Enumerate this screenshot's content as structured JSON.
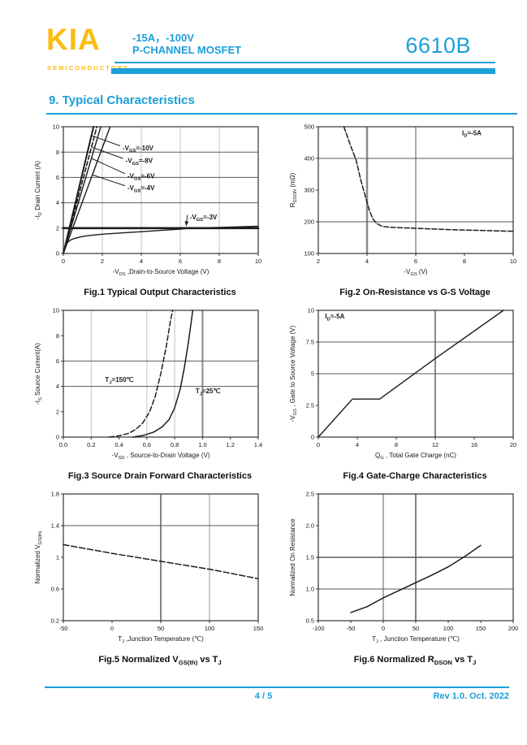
{
  "colors": {
    "accent": "#1b9fd8",
    "logo_yellow": "#fbbc12"
  },
  "header": {
    "logo_text": "KIA",
    "logo_subtext": "SEMICONDUCTORS",
    "rating_line": "-15A，-100V",
    "type_line": "P-CHANNEL MOSFET",
    "part_number": "6610B"
  },
  "section": {
    "title": "9.  Typical Characteristics"
  },
  "footer": {
    "page_indicator": "4 / 5",
    "revision": "Rev 1.0. Oct. 2022"
  },
  "chart_data": [
    {
      "id": "fig1",
      "type": "line",
      "caption": "Fig.1 Typical Output Characteristics",
      "xlabel": "-V_{DS} ,Drain-to-Source Voltage (V)",
      "ylabel": "-I_{D} Drain Current (A)",
      "xlim": [
        0,
        10
      ],
      "ylim": [
        0,
        10
      ],
      "xticks": [
        0,
        2,
        4,
        6,
        8,
        10
      ],
      "xtick_labels": [
        "0",
        "2",
        "4",
        "6",
        "8",
        "10"
      ],
      "yticks": [
        0,
        2,
        4,
        6,
        8,
        10
      ],
      "ytick_labels": [
        "0",
        "2",
        "4",
        "6",
        "8",
        "10"
      ],
      "grid_v": [
        {
          "x": 2,
          "c": "#c3c3c3",
          "w": 1
        },
        {
          "x": 4,
          "c": "#c3c3c3",
          "w": 1
        },
        {
          "x": 6,
          "c": "#c3c3c3",
          "w": 1
        },
        {
          "x": 8,
          "c": "#c3c3c3",
          "w": 1
        }
      ],
      "grid_h": [
        {
          "y": 4,
          "c": "#5a5a5a",
          "w": 1
        },
        {
          "y": 6,
          "c": "#5a5a5a",
          "w": 1
        },
        {
          "y": 8,
          "c": "#5a5a5a",
          "w": 1
        }
      ],
      "series": [
        {
          "name": "-VGS=-10V",
          "dash": "",
          "w": 2,
          "points": [
            [
              0,
              0
            ],
            [
              1.55,
              10
            ]
          ]
        },
        {
          "name": "-VGS=-8V",
          "dash": "5 3",
          "w": 1.6,
          "points": [
            [
              0,
              0
            ],
            [
              1.72,
              10
            ]
          ]
        },
        {
          "name": "-VGS=-6V",
          "dash": "",
          "w": 1.4,
          "points": [
            [
              0,
              0
            ],
            [
              1.92,
              10
            ]
          ]
        },
        {
          "name": "-VGS=-4V",
          "dash": "",
          "w": 1.4,
          "points": [
            [
              0,
              0
            ],
            [
              2.4,
              10
            ]
          ]
        },
        {
          "name": "-VGS=-3V saturation",
          "dash": "",
          "w": 2.6,
          "points": [
            [
              0,
              2
            ],
            [
              10,
              2
            ]
          ]
        },
        {
          "name": "-VGS=-3V",
          "dash": "",
          "w": 1.4,
          "points": [
            [
              0,
              0
            ],
            [
              0.1,
              0.55
            ],
            [
              0.2,
              0.85
            ],
            [
              0.35,
              1.05
            ],
            [
              0.6,
              1.2
            ],
            [
              1,
              1.35
            ],
            [
              1.5,
              1.45
            ],
            [
              2,
              1.52
            ],
            [
              3,
              1.62
            ],
            [
              4,
              1.72
            ],
            [
              5,
              1.82
            ],
            [
              6,
              1.92
            ],
            [
              6.5,
              2.0
            ],
            [
              7,
              2.02
            ],
            [
              8,
              2.06
            ],
            [
              9,
              2.1
            ],
            [
              10,
              2.15
            ]
          ]
        }
      ],
      "annotations": [],
      "callouts": [
        {
          "text": "-V_{GS}=-10V",
          "tx": 3.0,
          "ty": 8.3,
          "ax": 1.45,
          "ay": 9.3,
          "arrow": false
        },
        {
          "text": "-V_{GS}=-8V",
          "tx": 3.15,
          "ty": 7.3,
          "ax": 1.44,
          "ay": 8.4,
          "arrow": false
        },
        {
          "text": "-V_{GS}=-6V",
          "tx": 3.25,
          "ty": 6.1,
          "ax": 1.45,
          "ay": 7.5,
          "arrow": false
        },
        {
          "text": "-V_{GS}=-4V",
          "tx": 3.25,
          "ty": 5.15,
          "ax": 1.5,
          "ay": 6.2,
          "arrow": false
        },
        {
          "text": "-V_{GS}=-3V",
          "tx": 6.45,
          "ty": 2.85,
          "ax": 6.3,
          "ay": 2.15,
          "arrow": true
        }
      ]
    },
    {
      "id": "fig2",
      "type": "line",
      "caption": "Fig.2 On-Resistance vs G-S Voltage",
      "xlabel": "-V_{GS} (V)",
      "ylabel": "R_{DSON} (mΩ)",
      "xlim": [
        2,
        10
      ],
      "ylim": [
        100,
        500
      ],
      "xticks": [
        2,
        4,
        6,
        8,
        10
      ],
      "xtick_labels": [
        "2",
        "4",
        "6",
        "8",
        "10"
      ],
      "yticks": [
        100,
        200,
        300,
        400,
        500
      ],
      "ytick_labels": [
        "100",
        "200",
        "300",
        "400",
        "500"
      ],
      "grid_v": [
        {
          "x": 4,
          "c": "#8a8a8a",
          "w": 2.5
        },
        {
          "x": 6,
          "c": "#5a5a5a",
          "w": 1
        }
      ],
      "grid_h": [
        {
          "y": 200,
          "c": "#5a5a5a",
          "w": 1
        },
        {
          "y": 400,
          "c": "#5a5a5a",
          "w": 1
        }
      ],
      "series": [
        {
          "name": "RDSON vs VGS",
          "dash": "6 2.5",
          "w": 1.5,
          "points": [
            [
              3.05,
              500
            ],
            [
              3.3,
              445
            ],
            [
              3.55,
              395
            ],
            [
              3.75,
              330
            ],
            [
              3.95,
              275
            ],
            [
              4.1,
              235
            ],
            [
              4.25,
              208
            ],
            [
              4.4,
              195
            ],
            [
              4.6,
              186
            ],
            [
              4.9,
              183
            ],
            [
              5.5,
              181
            ],
            [
              6.5,
              178
            ],
            [
              7.5,
              175
            ],
            [
              8.5,
              173
            ],
            [
              10,
              170
            ]
          ]
        }
      ],
      "annotations": [
        {
          "text": "I_{D}=-5A",
          "x": 7.9,
          "y": 473,
          "anchor": "start"
        }
      ],
      "callouts": []
    },
    {
      "id": "fig3",
      "type": "line",
      "caption": "Fig.3 Source Drain Forward Characteristics",
      "xlabel": "-V_{SD} , Source-to-Drain Voltage (V)",
      "ylabel": "-I_{S} Source Current(A)",
      "xlim": [
        0,
        1.4
      ],
      "ylim": [
        0,
        10
      ],
      "xticks": [
        0,
        0.2,
        0.4,
        0.6,
        0.8,
        1.0,
        1.2,
        1.4
      ],
      "xtick_labels": [
        "0.0",
        "0.2",
        "0.4",
        "0.6",
        "0.8",
        "1.0",
        "1.2",
        "1.4"
      ],
      "yticks": [
        0,
        2,
        4,
        6,
        8,
        10
      ],
      "ytick_labels": [
        "0",
        "2",
        "4",
        "6",
        "8",
        "10"
      ],
      "grid_v": [
        {
          "x": 0.2,
          "c": "#c3c3c3",
          "w": 1
        },
        {
          "x": 0.6,
          "c": "#c3c3c3",
          "w": 1
        },
        {
          "x": 0.8,
          "c": "#c3c3c3",
          "w": 1
        },
        {
          "x": 1.0,
          "c": "#8a8a8a",
          "w": 2
        }
      ],
      "grid_h": [
        {
          "y": 4,
          "c": "#5a5a5a",
          "w": 1
        },
        {
          "y": 6,
          "c": "#5a5a5a",
          "w": 1
        }
      ],
      "series": [
        {
          "name": "TJ=150C",
          "dash": "6 3",
          "w": 1.5,
          "points": [
            [
              0.33,
              0
            ],
            [
              0.4,
              0.1
            ],
            [
              0.47,
              0.3
            ],
            [
              0.52,
              0.6
            ],
            [
              0.57,
              1.1
            ],
            [
              0.62,
              2.0
            ],
            [
              0.66,
              3.2
            ],
            [
              0.7,
              5.0
            ],
            [
              0.74,
              7.2
            ],
            [
              0.77,
              9.2
            ],
            [
              0.785,
              10
            ]
          ]
        },
        {
          "name": "TJ=25C",
          "dash": "",
          "w": 1.5,
          "points": [
            [
              0.5,
              0
            ],
            [
              0.58,
              0.15
            ],
            [
              0.65,
              0.4
            ],
            [
              0.71,
              0.8
            ],
            [
              0.76,
              1.4
            ],
            [
              0.8,
              2.3
            ],
            [
              0.84,
              3.8
            ],
            [
              0.87,
              5.5
            ],
            [
              0.9,
              7.6
            ],
            [
              0.92,
              9.2
            ],
            [
              0.93,
              10
            ]
          ]
        }
      ],
      "annotations": [
        {
          "text": "T_{J}=150℃",
          "x": 0.3,
          "y": 4.35,
          "anchor": "start"
        },
        {
          "text": "T_{J}=25℃",
          "x": 0.95,
          "y": 3.45,
          "anchor": "start"
        }
      ],
      "callouts": []
    },
    {
      "id": "fig4",
      "type": "line",
      "caption": "Fig.4 Gate-Charge Characteristics",
      "xlabel": "Q_{G} , Total Gate Charge (nC)",
      "ylabel": "-V_{GS} , Gate to Source Voltage (V)",
      "xlim": [
        0,
        20
      ],
      "ylim": [
        0,
        10
      ],
      "xticks": [
        0,
        4,
        8,
        12,
        16,
        20
      ],
      "xtick_labels": [
        "0",
        "4",
        "8",
        "12",
        "16",
        "20"
      ],
      "yticks": [
        0,
        2.5,
        5,
        7.5,
        10
      ],
      "ytick_labels": [
        "0",
        "2.5",
        "5",
        "7.5",
        "10"
      ],
      "grid_v": [
        {
          "x": 12,
          "c": "#8a8a8a",
          "w": 2
        }
      ],
      "grid_h": [
        {
          "y": 5,
          "c": "#5a5a5a",
          "w": 1
        },
        {
          "y": 7.5,
          "c": "#5a5a5a",
          "w": 1
        }
      ],
      "series": [
        {
          "name": "gate charge",
          "dash": "",
          "w": 1.4,
          "points": [
            [
              0,
              0
            ],
            [
              3.5,
              3
            ],
            [
              6.3,
              3
            ],
            [
              12,
              6.2
            ],
            [
              19,
              10
            ]
          ]
        }
      ],
      "annotations": [
        {
          "text": "I_{D}=-5A",
          "x": 0.7,
          "y": 9.35,
          "anchor": "start"
        }
      ],
      "callouts": []
    },
    {
      "id": "fig5",
      "type": "line",
      "caption": "Fig.5 Normalized V_{GS(th)} vs T_{J}",
      "xlabel": "T_{J} ,Junction Temperature (℃)",
      "ylabel": "Normalized V_{GS(th)}",
      "xlim": [
        -50,
        150
      ],
      "ylim": [
        0.2,
        1.8
      ],
      "xticks": [
        -50,
        0,
        50,
        100,
        150
      ],
      "xtick_labels": [
        "-50",
        "0",
        "50",
        "100",
        "150"
      ],
      "yticks": [
        0.2,
        0.6,
        1.0,
        1.4,
        1.8
      ],
      "ytick_labels": [
        "0.2",
        "0.6",
        "1",
        "1.4",
        "1.8"
      ],
      "grid_v": [
        {
          "x": 50,
          "c": "#5a5a5a",
          "w": 1.5
        },
        {
          "x": 100,
          "c": "#9a9a9a",
          "w": 1
        }
      ],
      "grid_h": [
        {
          "y": 1.4,
          "c": "#5a5a5a",
          "w": 1
        }
      ],
      "series": [
        {
          "name": "normalized VGS(th)",
          "dash": "7 3",
          "w": 1.5,
          "points": [
            [
              -50,
              1.16
            ],
            [
              0,
              1.05
            ],
            [
              50,
              0.95
            ],
            [
              100,
              0.85
            ],
            [
              150,
              0.73
            ]
          ]
        }
      ],
      "annotations": [],
      "callouts": []
    },
    {
      "id": "fig6",
      "type": "line",
      "caption": "Fig.6 Normalized R_{DSON} vs T_{J}",
      "xlabel": "T_{J} , Junction Temperature (℃)",
      "ylabel": "Normalized On Resistance",
      "xlim": [
        -100,
        200
      ],
      "ylim": [
        0.5,
        2.5
      ],
      "xticks": [
        -100,
        -50,
        0,
        50,
        100,
        150,
        200
      ],
      "xtick_labels": [
        "-100",
        "-50",
        "0",
        "50",
        "100",
        "150",
        "200"
      ],
      "yticks": [
        0.5,
        1.0,
        1.5,
        2.0,
        2.5
      ],
      "ytick_labels": [
        "0.5",
        "1.0",
        "1.5",
        "2.0",
        "2.5"
      ],
      "grid_v": [
        {
          "x": 0,
          "c": "#5a5a5a",
          "w": 1
        },
        {
          "x": 50,
          "c": "#5a5a5a",
          "w": 1.5
        }
      ],
      "grid_h": [
        {
          "y": 1.0,
          "c": "#5a5a5a",
          "w": 1
        },
        {
          "y": 1.5,
          "c": "#5a5a5a",
          "w": 1.5
        }
      ],
      "series": [
        {
          "name": "normalized RDSON",
          "dash": "",
          "w": 1.5,
          "points": [
            [
              -50,
              0.63
            ],
            [
              -25,
              0.72
            ],
            [
              0,
              0.86
            ],
            [
              25,
              0.98
            ],
            [
              50,
              1.1
            ],
            [
              75,
              1.22
            ],
            [
              100,
              1.35
            ],
            [
              125,
              1.51
            ],
            [
              150,
              1.69
            ]
          ]
        }
      ],
      "annotations": [],
      "callouts": []
    }
  ]
}
